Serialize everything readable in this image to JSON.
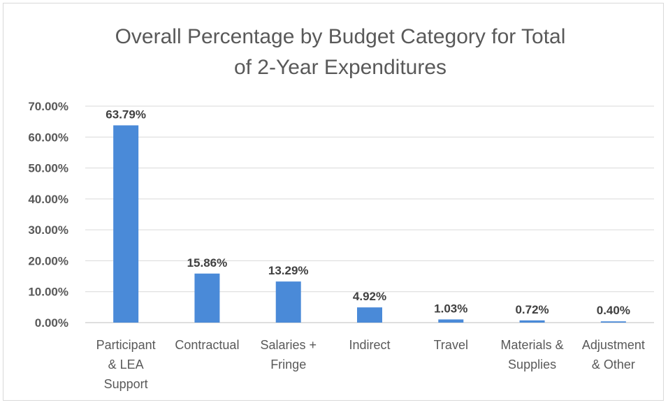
{
  "chart_data": {
    "type": "bar",
    "title_lines": [
      "Overall Percentage by Budget Category for Total",
      "of 2-Year Expenditures"
    ],
    "categories": [
      [
        "Participant",
        "& LEA",
        "Support"
      ],
      [
        "Contractual"
      ],
      [
        "Salaries +",
        "Fringe"
      ],
      [
        "Indirect"
      ],
      [
        "Travel"
      ],
      [
        "Materials &",
        "Supplies"
      ],
      [
        "Adjustment",
        "& Other"
      ]
    ],
    "values": [
      63.79,
      15.86,
      13.29,
      4.92,
      1.03,
      0.72,
      0.4
    ],
    "data_labels": [
      "63.79%",
      "15.86%",
      "13.29%",
      "4.92%",
      "1.03%",
      "0.72%",
      "0.40%"
    ],
    "y_ticks": [
      "0.00%",
      "10.00%",
      "20.00%",
      "30.00%",
      "40.00%",
      "50.00%",
      "60.00%",
      "70.00%"
    ],
    "ylim": [
      0,
      70
    ],
    "grid": true,
    "legend": "none",
    "bar_color": "#4a8ad8"
  }
}
